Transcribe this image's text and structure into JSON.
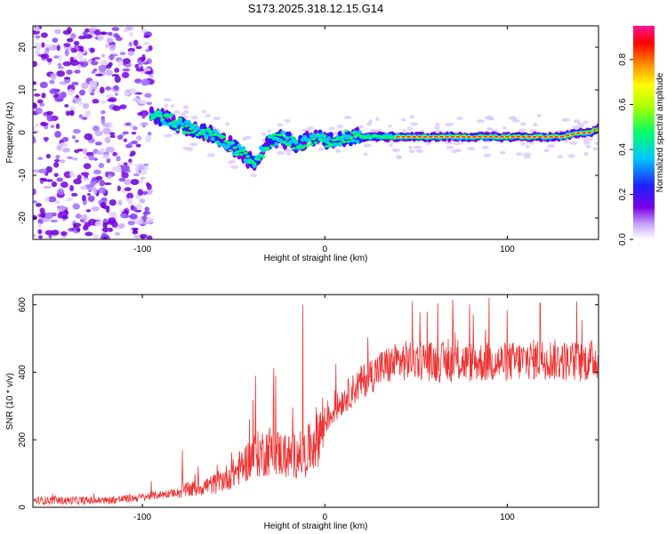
{
  "page_title": "S173.2025.318.12.15.G14",
  "chart_data": [
    {
      "type": "heatmap",
      "name": "spectrogram",
      "xlabel": "Height of straight line (km)",
      "ylabel": "Frequency (Hz)",
      "xlim": [
        -160,
        150
      ],
      "ylim": [
        -25,
        25
      ],
      "xticks": [
        -100,
        0,
        100
      ],
      "xtick_labels": [
        "-100",
        "0",
        "100"
      ],
      "yticks": [
        -20,
        -10,
        0,
        10,
        20
      ],
      "ytick_labels": [
        "-20",
        "-10",
        "0",
        "10",
        "20"
      ],
      "ridge": {
        "x": [
          -95,
          -85,
          -75,
          -65,
          -55,
          -45,
          -40,
          -35,
          -30,
          -25,
          -20,
          -15,
          -10,
          -5,
          0,
          5,
          10,
          15,
          20,
          30,
          40,
          50,
          60,
          80,
          100,
          120,
          130,
          140,
          145,
          150
        ],
        "y": [
          4,
          3,
          1,
          0,
          -2,
          -5,
          -7,
          -5,
          -2,
          -1,
          -2,
          -3,
          -2,
          -1,
          -2,
          -2,
          -1,
          -1,
          -1,
          -1,
          -1,
          -1,
          -1,
          -1,
          -1,
          -1,
          -1,
          0,
          0,
          1
        ]
      },
      "colorbar": {
        "label": "Normalized spectral amplitude",
        "range": [
          0,
          0.95
        ],
        "ticks": [
          0.0,
          0.2,
          0.4,
          0.6,
          0.8
        ],
        "tick_labels": [
          "0.0",
          "0.2",
          "0.4",
          "0.6",
          "0.8"
        ],
        "colors": [
          "#ffffff",
          "#b07cff",
          "#7a00e6",
          "#1f1fff",
          "#00e5ff",
          "#00ff66",
          "#aaff00",
          "#ffff00",
          "#ff8c00",
          "#ff0000",
          "#ff1493"
        ]
      }
    },
    {
      "type": "line",
      "name": "snr",
      "xlabel": "Height of straight line (km)",
      "ylabel": "SNR (10 * v/v)",
      "xlim": [
        -160,
        150
      ],
      "ylim": [
        0,
        630
      ],
      "xticks": [
        -100,
        0,
        100
      ],
      "xtick_labels": [
        "-100",
        "0",
        "100"
      ],
      "yticks": [
        0,
        200,
        400,
        600
      ],
      "ytick_labels": [
        "0",
        "200",
        "400",
        "600"
      ],
      "color": "#ee3333",
      "trend": {
        "x": [
          -160,
          -120,
          -100,
          -80,
          -60,
          -50,
          -40,
          -30,
          -20,
          -10,
          0,
          10,
          20,
          30,
          40,
          50,
          60,
          80,
          100,
          120,
          140,
          150
        ],
        "y": [
          20,
          20,
          30,
          45,
          70,
          100,
          150,
          170,
          150,
          160,
          250,
          320,
          370,
          410,
          430,
          440,
          430,
          430,
          430,
          440,
          430,
          440
        ]
      },
      "spikes": [
        {
          "x": -12,
          "y": 600
        },
        {
          "x": -38,
          "y": 390
        },
        {
          "x": -78,
          "y": 170
        },
        {
          "x": 48,
          "y": 610
        },
        {
          "x": 70,
          "y": 615
        },
        {
          "x": 90,
          "y": 620
        },
        {
          "x": 118,
          "y": 605
        },
        {
          "x": 138,
          "y": 610
        }
      ]
    }
  ]
}
